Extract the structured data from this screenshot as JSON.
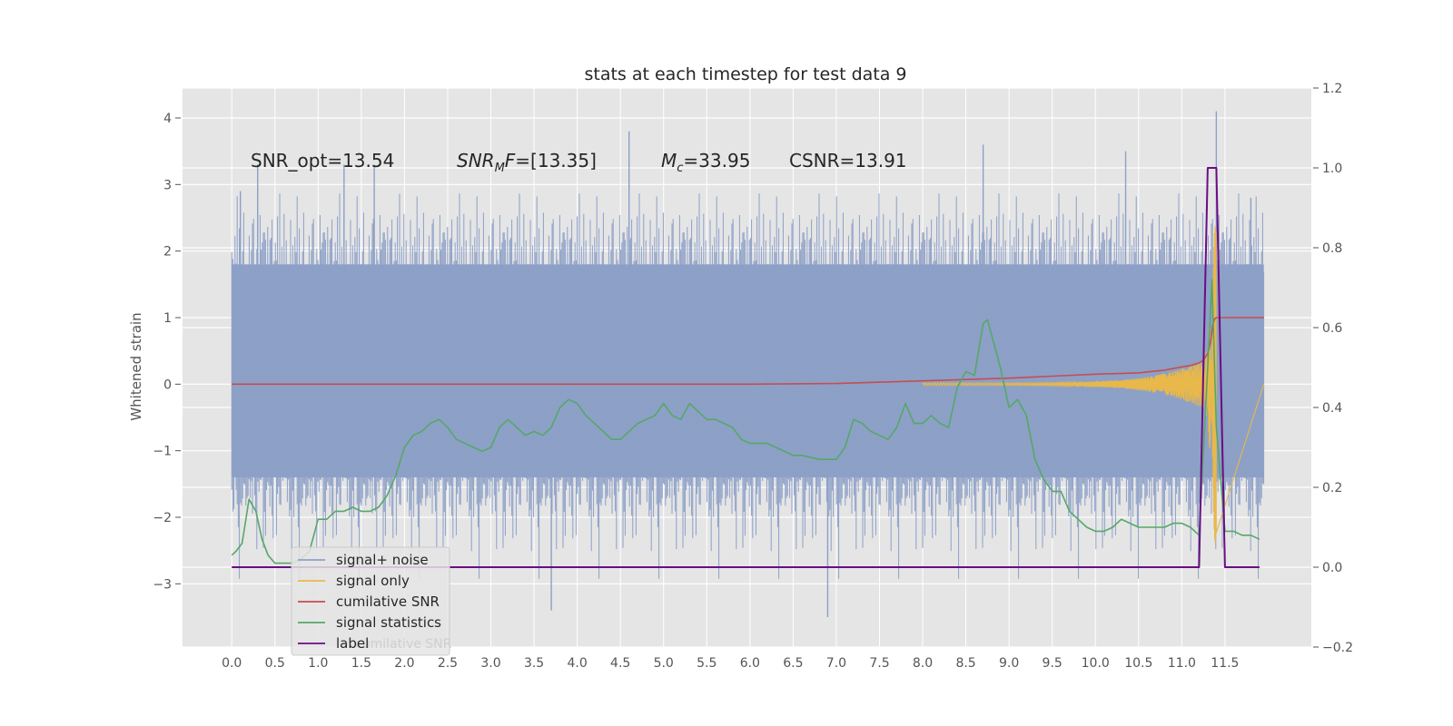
{
  "chart_data": {
    "type": "line",
    "title": "stats at each timestep for test data 9",
    "xlabel": "",
    "ylabel": "Whitened strain",
    "ylabel_right": "",
    "xlim": [
      -0.57,
      12.5
    ],
    "ylim": [
      -3.95,
      4.45
    ],
    "ylim_right": [
      -0.2,
      1.2
    ],
    "grid": true,
    "x_ticks": [
      "0.0",
      "0.5",
      "1.0",
      "1.5",
      "2.0",
      "2.5",
      "3.0",
      "3.5",
      "4.0",
      "4.5",
      "5.0",
      "5.5",
      "6.0",
      "6.5",
      "7.0",
      "7.5",
      "8.0",
      "8.5",
      "9.0",
      "9.5",
      "10.0",
      "10.5",
      "11.0",
      "11.5"
    ],
    "y_ticks": [
      -3,
      -2,
      -1,
      0,
      1,
      2,
      3,
      4
    ],
    "y_tick_labels": [
      "−3",
      "−2",
      "−1",
      "0",
      "1",
      "2",
      "3",
      "4"
    ],
    "y_ticks_right": [
      -0.2,
      0.0,
      0.2,
      0.4,
      0.6,
      0.8,
      1.0,
      1.2
    ],
    "y_tick_labels_right": [
      "−0.2",
      "0.0",
      "0.2",
      "0.4",
      "0.6",
      "0.8",
      "1.0",
      "1.2"
    ],
    "annotations": {
      "snr_opt": "SNR_opt=13.54",
      "snr_mf_name": "SNR",
      "snr_mf_sub": "M",
      "snr_mf_rest": "F",
      "snr_mf_value": "=[13.35]",
      "mc_name": "M",
      "mc_sub": "c",
      "mc_value": "=33.95",
      "csnr": "CSNR=13.91"
    },
    "legend": {
      "placement": "lower-left",
      "entries": [
        "signal+ noise",
        "signal only",
        "cumilative SNR",
        "signal statistics",
        "label"
      ],
      "ghost_text": "cumilative SNR"
    },
    "colors": {
      "noise": "#8da0c7",
      "signal": "#e8b84a",
      "cumulative": "#c44e52",
      "statistics": "#55a868",
      "label": "#6a0d83",
      "background": "#e5e5e5"
    },
    "series": [
      {
        "name": "signal+ noise",
        "axis": "left",
        "kind": "noise",
        "x_range": [
          0.0,
          11.95
        ],
        "band": [
          -1.4,
          1.8
        ],
        "notable_spikes": [
          {
            "x": 0.1,
            "y": 2.9
          },
          {
            "x": 0.3,
            "y": 3.3
          },
          {
            "x": 1.3,
            "y": 3.3
          },
          {
            "x": 1.65,
            "y": 3.3
          },
          {
            "x": 3.7,
            "y": -3.4
          },
          {
            "x": 4.6,
            "y": 3.8
          },
          {
            "x": 6.9,
            "y": -3.5
          },
          {
            "x": 8.7,
            "y": 3.6
          },
          {
            "x": 10.35,
            "y": 3.5
          },
          {
            "x": 11.4,
            "y": 4.1
          },
          {
            "x": 11.8,
            "y": 2.8
          }
        ]
      },
      {
        "name": "signal only",
        "axis": "left",
        "kind": "chirp",
        "start": 8.0,
        "end": 11.4
      },
      {
        "name": "cumilative SNR",
        "axis": "left",
        "x": [
          0,
          6.0,
          7.0,
          8.0,
          8.5,
          9.0,
          9.5,
          10.0,
          10.5,
          10.8,
          11.0,
          11.1,
          11.2,
          11.25,
          11.3,
          11.32,
          11.34,
          11.36,
          11.38,
          11.4,
          11.5,
          11.95
        ],
        "y": [
          0,
          0,
          0.01,
          0.05,
          0.07,
          0.09,
          0.12,
          0.15,
          0.17,
          0.21,
          0.26,
          0.28,
          0.32,
          0.36,
          0.46,
          0.55,
          0.7,
          0.9,
          0.98,
          1.0,
          1.0,
          1.0
        ]
      },
      {
        "name": "signal statistics",
        "axis": "right",
        "x": [
          0,
          0.05,
          0.12,
          0.2,
          0.28,
          0.35,
          0.42,
          0.5,
          0.6,
          0.7,
          0.8,
          0.9,
          1.0,
          1.1,
          1.2,
          1.3,
          1.4,
          1.5,
          1.6,
          1.7,
          1.8,
          1.9,
          2.0,
          2.1,
          2.2,
          2.3,
          2.4,
          2.5,
          2.6,
          2.7,
          2.8,
          2.9,
          3.0,
          3.1,
          3.2,
          3.3,
          3.4,
          3.5,
          3.6,
          3.7,
          3.8,
          3.9,
          4.0,
          4.1,
          4.2,
          4.3,
          4.4,
          4.5,
          4.6,
          4.7,
          4.8,
          4.9,
          5.0,
          5.1,
          5.2,
          5.3,
          5.4,
          5.5,
          5.6,
          5.7,
          5.8,
          5.9,
          6.0,
          6.1,
          6.2,
          6.3,
          6.4,
          6.5,
          6.6,
          6.8,
          7.0,
          7.1,
          7.2,
          7.3,
          7.4,
          7.5,
          7.6,
          7.7,
          7.8,
          7.9,
          8.0,
          8.1,
          8.2,
          8.3,
          8.4,
          8.5,
          8.6,
          8.7,
          8.75,
          8.8,
          8.9,
          9.0,
          9.1,
          9.2,
          9.3,
          9.4,
          9.5,
          9.6,
          9.7,
          9.8,
          9.9,
          10.0,
          10.1,
          10.2,
          10.3,
          10.4,
          10.5,
          10.6,
          10.7,
          10.8,
          10.9,
          11.0,
          11.1,
          11.2,
          11.3,
          11.35,
          11.4,
          11.5,
          11.6,
          11.7,
          11.8,
          11.9
        ],
        "y": [
          0.03,
          0.04,
          0.06,
          0.17,
          0.14,
          0.07,
          0.03,
          0.01,
          0.01,
          0.01,
          0.02,
          0.04,
          0.12,
          0.12,
          0.14,
          0.14,
          0.15,
          0.14,
          0.14,
          0.15,
          0.18,
          0.23,
          0.3,
          0.33,
          0.34,
          0.36,
          0.37,
          0.35,
          0.32,
          0.31,
          0.3,
          0.29,
          0.3,
          0.35,
          0.37,
          0.35,
          0.33,
          0.34,
          0.33,
          0.35,
          0.4,
          0.42,
          0.41,
          0.38,
          0.36,
          0.34,
          0.32,
          0.32,
          0.34,
          0.36,
          0.37,
          0.38,
          0.41,
          0.38,
          0.37,
          0.41,
          0.39,
          0.37,
          0.37,
          0.36,
          0.35,
          0.32,
          0.31,
          0.31,
          0.31,
          0.3,
          0.29,
          0.28,
          0.28,
          0.27,
          0.27,
          0.3,
          0.37,
          0.36,
          0.34,
          0.33,
          0.32,
          0.35,
          0.41,
          0.36,
          0.36,
          0.38,
          0.36,
          0.35,
          0.45,
          0.49,
          0.48,
          0.61,
          0.62,
          0.58,
          0.5,
          0.4,
          0.42,
          0.38,
          0.27,
          0.22,
          0.19,
          0.19,
          0.14,
          0.12,
          0.1,
          0.09,
          0.09,
          0.1,
          0.12,
          0.11,
          0.1,
          0.1,
          0.1,
          0.1,
          0.11,
          0.11,
          0.1,
          0.08,
          0.5,
          0.72,
          0.35,
          0.09,
          0.09,
          0.08,
          0.08,
          0.07
        ]
      },
      {
        "name": "label",
        "axis": "right",
        "x": [
          0,
          11.2,
          11.3,
          11.4,
          11.5,
          11.9
        ],
        "y": [
          0,
          0,
          1,
          1,
          0,
          0
        ]
      }
    ]
  }
}
